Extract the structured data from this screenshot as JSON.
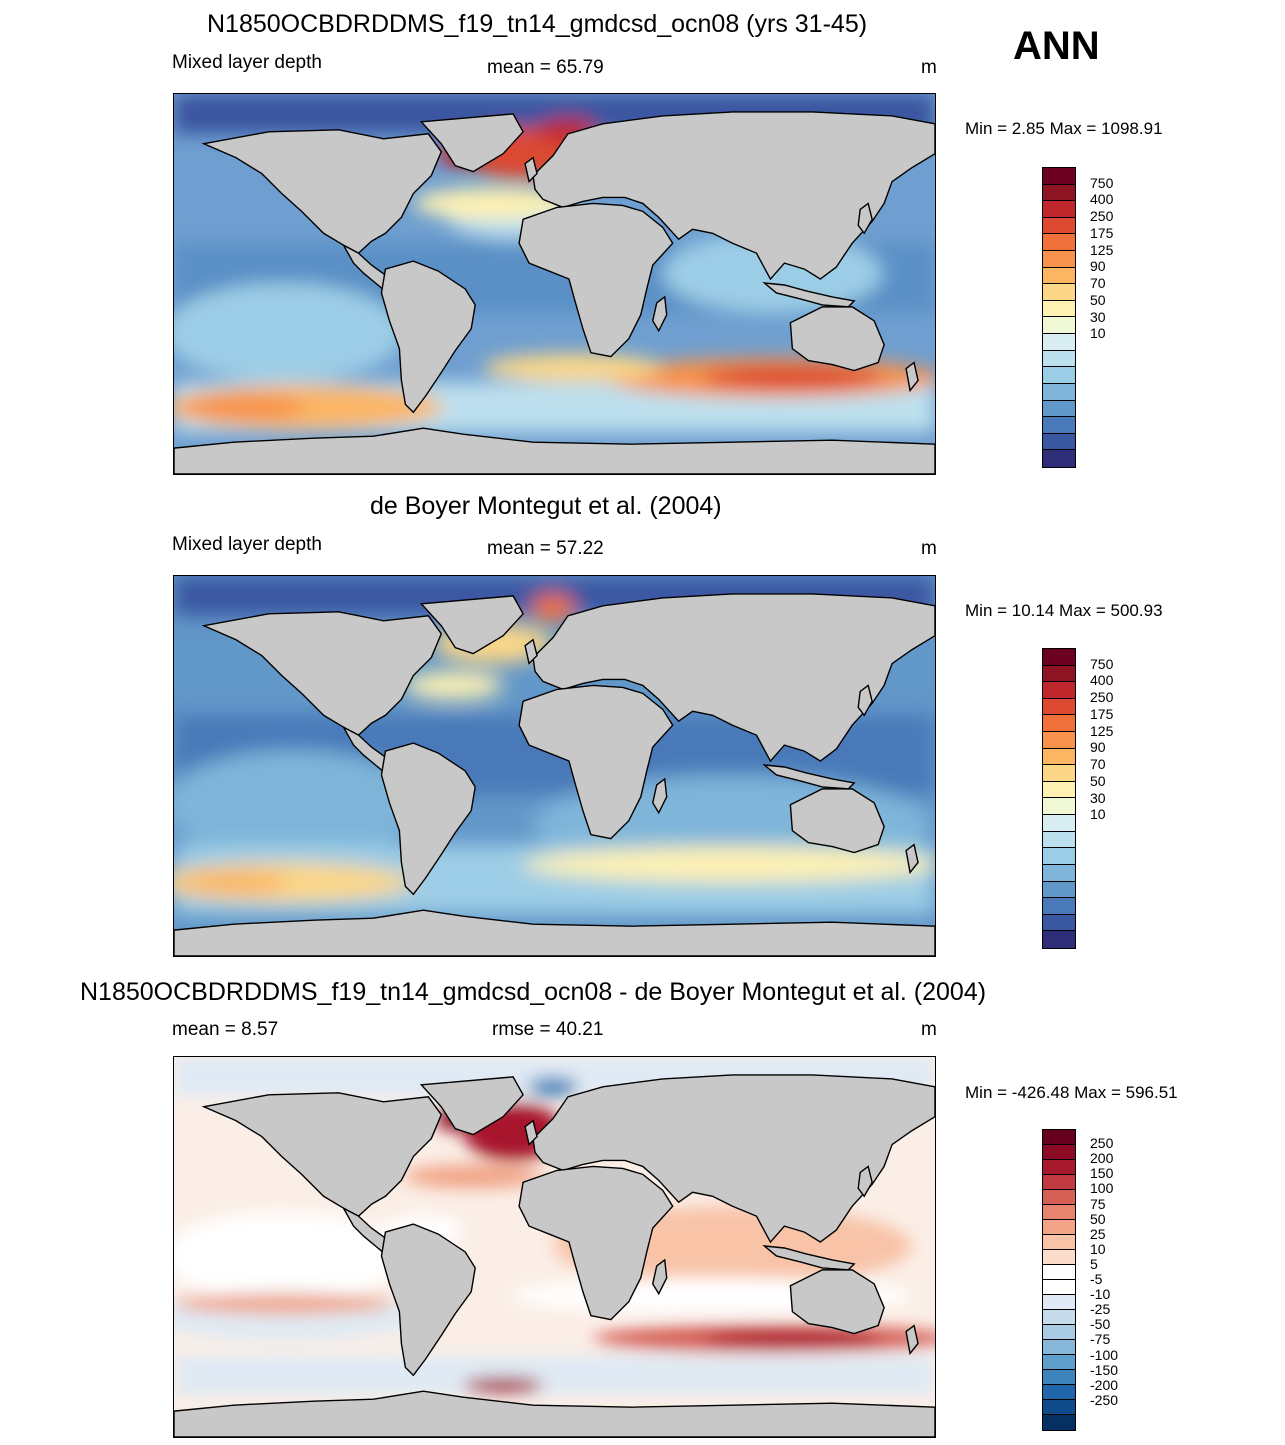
{
  "season_label": "ANN",
  "continent_fill": "#c8c8c8",
  "panels": [
    {
      "id": "model",
      "title": "N1850OCBDRDDMS_f19_tn14_gmdcsd_ocn08 (yrs 31-45)",
      "left_label": "Mixed layer depth",
      "center_label": "mean =  65.79",
      "units": "m",
      "minmax": "Min =   2.85 Max = 1098.91",
      "colorbar": {
        "colors": [
          "#6b0020",
          "#8e1424",
          "#c0272d",
          "#dc4a32",
          "#f0703c",
          "#f7934c",
          "#fbb563",
          "#fcd787",
          "#fef1b2",
          "#f1f8d6",
          "#d9eef2",
          "#bde0ee",
          "#9ccde6",
          "#7eb5d9",
          "#6297c9",
          "#4a79b9",
          "#3a57a2",
          "#2e2e78"
        ],
        "labels": [
          "750",
          "400",
          "250",
          "175",
          "125",
          "90",
          "70",
          "50",
          "30",
          "10"
        ]
      }
    },
    {
      "id": "obs",
      "title": "de Boyer Montegut et al. (2004)",
      "left_label": "Mixed layer depth",
      "center_label": "mean =  57.22",
      "units": "m",
      "minmax": "Min =  10.14 Max = 500.93",
      "colorbar": {
        "colors": [
          "#6b0020",
          "#8e1424",
          "#c0272d",
          "#dc4a32",
          "#f0703c",
          "#f7934c",
          "#fbb563",
          "#fcd787",
          "#fef1b2",
          "#f1f8d6",
          "#d9eef2",
          "#bde0ee",
          "#9ccde6",
          "#7eb5d9",
          "#6297c9",
          "#4a79b9",
          "#3a57a2",
          "#2e2e78"
        ],
        "labels": [
          "750",
          "400",
          "250",
          "175",
          "125",
          "90",
          "70",
          "50",
          "30",
          "10"
        ]
      }
    },
    {
      "id": "diff",
      "title": "N1850OCBDRDDMS_f19_tn14_gmdcsd_ocn08 - de Boyer Montegut et al. (2004)",
      "left_label": "mean =   8.57",
      "center_label": "rmse =  40.21",
      "units": "m",
      "minmax": "Min = -426.48 Max = 596.51",
      "colorbar": {
        "colors": [
          "#67001f",
          "#8c0a26",
          "#a8182d",
          "#c13a3f",
          "#d55f55",
          "#e7846d",
          "#f1a487",
          "#f8c3a7",
          "#fcdccb",
          "#ffffff",
          "#ffffff",
          "#dfeaf4",
          "#c6dbec",
          "#a9cce4",
          "#88b8d9",
          "#5f9fcc",
          "#3d83bc",
          "#2066a8",
          "#104c8c",
          "#053061"
        ],
        "labels": [
          "250",
          "200",
          "150",
          "100",
          "75",
          "50",
          "25",
          "10",
          "5",
          "-5",
          "-10",
          "-25",
          "-50",
          "-75",
          "-100",
          "-150",
          "-200",
          "-250"
        ]
      }
    }
  ]
}
